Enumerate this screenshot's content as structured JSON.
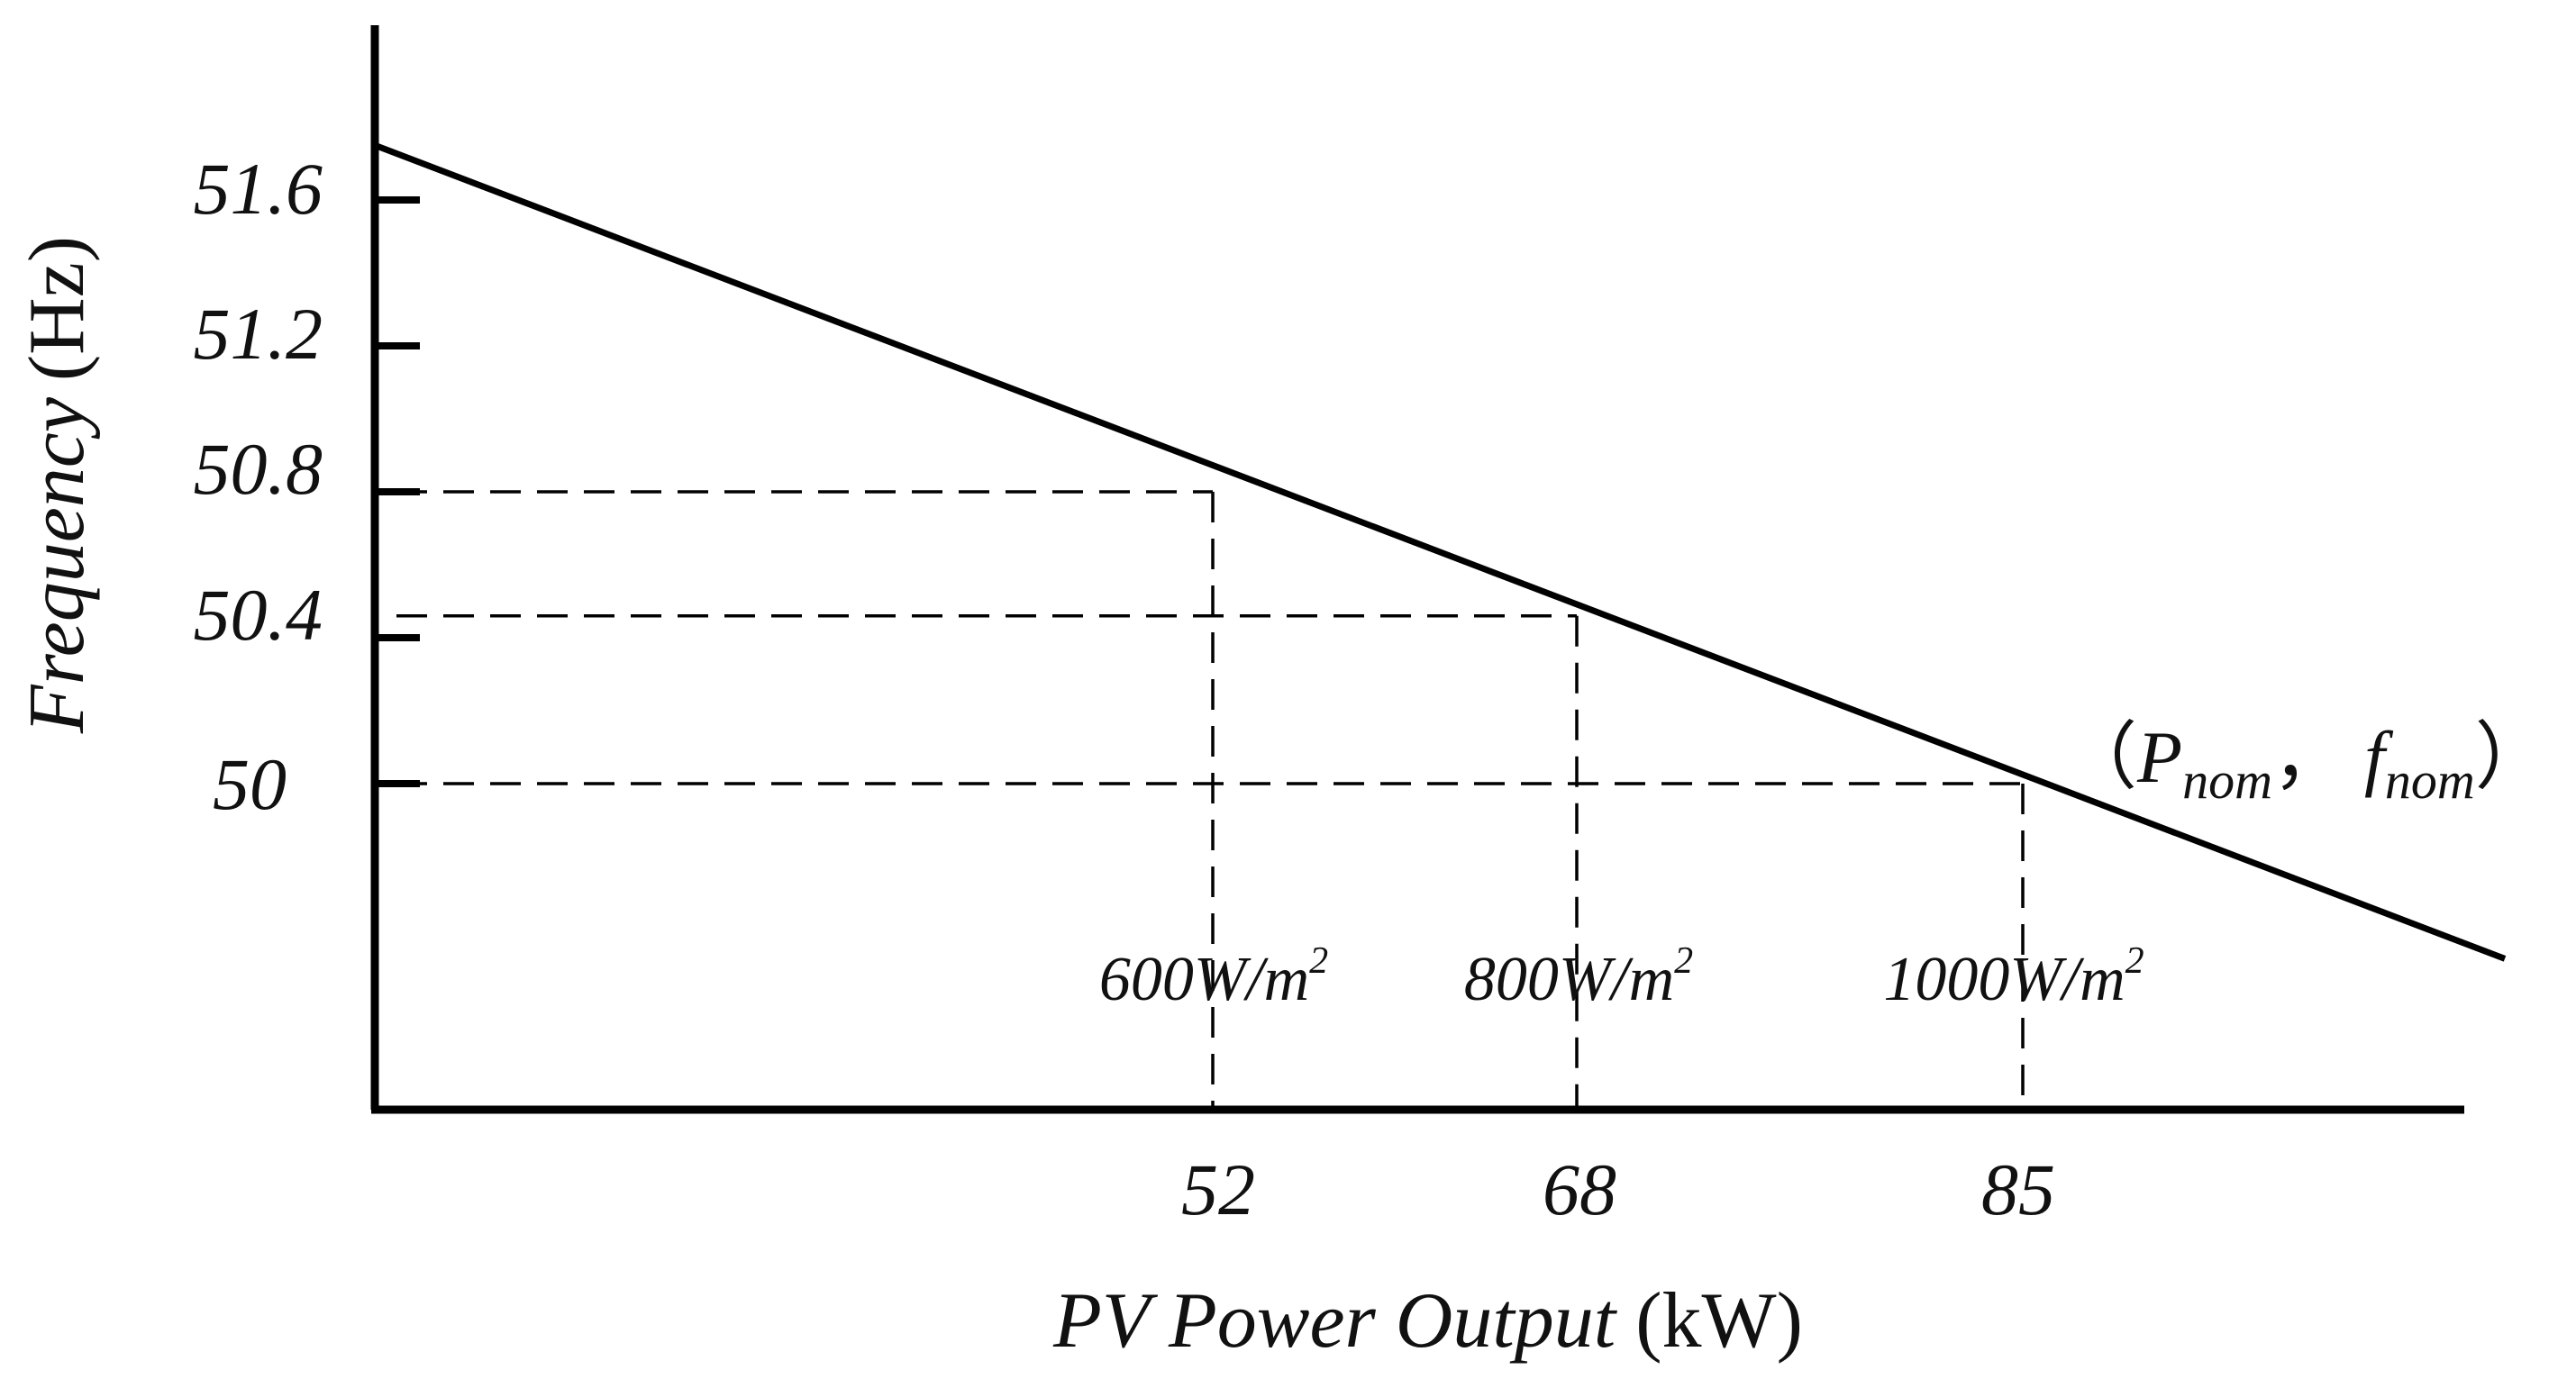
{
  "chart_data": {
    "type": "line",
    "xlabel": {
      "italic": "PV Power Output",
      "unit": "(kW)"
    },
    "ylabel": {
      "italic": "Frequency",
      "unit": "(Hz)"
    },
    "y_ticks": [
      "51.6",
      "51.2",
      "50.8",
      "50.4",
      "50"
    ],
    "x_ticks": [
      "52",
      "68",
      "85"
    ],
    "series": [
      {
        "x": [
          0,
          93.5
        ],
        "y": [
          51.75,
          49.52
        ]
      }
    ],
    "reference_points": [
      {
        "x": 52,
        "y": 50.8,
        "irradiance": "600W/m",
        "sup": "2"
      },
      {
        "x": 68,
        "y": 50.46,
        "irradiance": "800W/m",
        "sup": "2"
      },
      {
        "x": 85,
        "y": 50.0,
        "irradiance": "1000W/m",
        "sup": "2"
      }
    ],
    "annotation": {
      "open": "（",
      "p": "P",
      "p_sub": "nom",
      "sep": "，",
      "f": "f",
      "f_sub": "nom",
      "close": "）"
    },
    "colors": {
      "line": "#000000",
      "dash": "#000000",
      "text": "#111111"
    }
  }
}
